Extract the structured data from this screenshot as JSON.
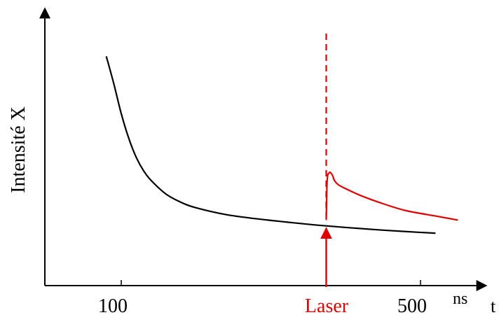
{
  "chart_data": {
    "type": "line",
    "title": "",
    "ylabel": "Intensité X",
    "xlabel": "t",
    "x_unit": "ns",
    "xlim": [
      75,
      540
    ],
    "ylim": [
      0,
      1
    ],
    "x_ticks": [
      {
        "value": 100,
        "label": "100"
      },
      {
        "value": 500,
        "label": "500"
      }
    ],
    "series": [
      {
        "color": "#000000",
        "x": [
          80,
          90,
          100,
          110,
          120,
          130,
          140,
          160,
          180,
          200,
          240,
          280,
          320,
          360,
          400,
          440,
          480,
          520
        ],
        "y": [
          0.84,
          0.74,
          0.63,
          0.54,
          0.47,
          0.42,
          0.385,
          0.335,
          0.305,
          0.285,
          0.26,
          0.245,
          0.233,
          0.222,
          0.213,
          0.205,
          0.198,
          0.192
        ]
      },
      {
        "color": "#e00000",
        "x": [
          374,
          374.5,
          375,
          376,
          377,
          379,
          381,
          383,
          385,
          390,
          400,
          420,
          450,
          480,
          520,
          550
        ],
        "y": [
          0.24,
          0.3,
          0.37,
          0.405,
          0.41,
          0.415,
          0.41,
          0.4,
          0.385,
          0.37,
          0.355,
          0.33,
          0.3,
          0.275,
          0.255,
          0.24
        ]
      }
    ],
    "marker": {
      "label": "Laser",
      "x": 374,
      "color": "#e00000"
    },
    "grid": false,
    "legend": "none"
  }
}
